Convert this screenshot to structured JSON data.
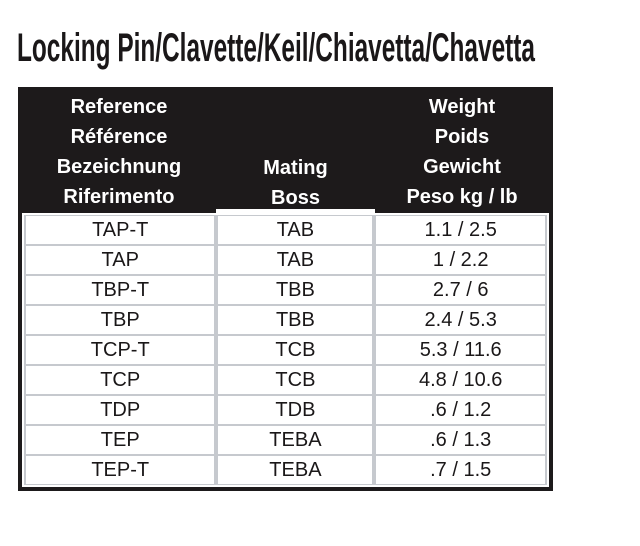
{
  "title": "Locking Pin/Clavette/Keil/Chiavetta/Chavetta",
  "table": {
    "header": {
      "reference_lines": [
        "Reference",
        "Référence",
        "Bezeichnung",
        "Riferimento"
      ],
      "mating_lines": [
        "Mating",
        "Boss"
      ],
      "weight_lines": [
        "Weight",
        "Poids",
        "Gewicht",
        "Peso kg / lb"
      ]
    },
    "rows": [
      {
        "reference": "TAP-T",
        "mating_boss": "TAB",
        "weight": "1.1 / 2.5"
      },
      {
        "reference": "TAP",
        "mating_boss": "TAB",
        "weight": "1 / 2.2"
      },
      {
        "reference": "TBP-T",
        "mating_boss": "TBB",
        "weight": "2.7 / 6"
      },
      {
        "reference": "TBP",
        "mating_boss": "TBB",
        "weight": "2.4 / 5.3"
      },
      {
        "reference": "TCP-T",
        "mating_boss": "TCB",
        "weight": "5.3 / 11.6"
      },
      {
        "reference": "TCP",
        "mating_boss": "TCB",
        "weight": "4.8 / 10.6"
      },
      {
        "reference": "TDP",
        "mating_boss": "TDB",
        "weight": ".6 / 1.2"
      },
      {
        "reference": "TEP",
        "mating_boss": "TEBA",
        "weight": ".6 / 1.3"
      },
      {
        "reference": "TEP-T",
        "mating_boss": "TEBA",
        "weight": ".7 / 1.5"
      }
    ]
  },
  "colors": {
    "header_bg": "#1d1a1b",
    "header_text": "#ffffff",
    "body_text": "#1a1718",
    "cell_border": "#c6c9ce",
    "outer_border": "#1d1a1b"
  }
}
